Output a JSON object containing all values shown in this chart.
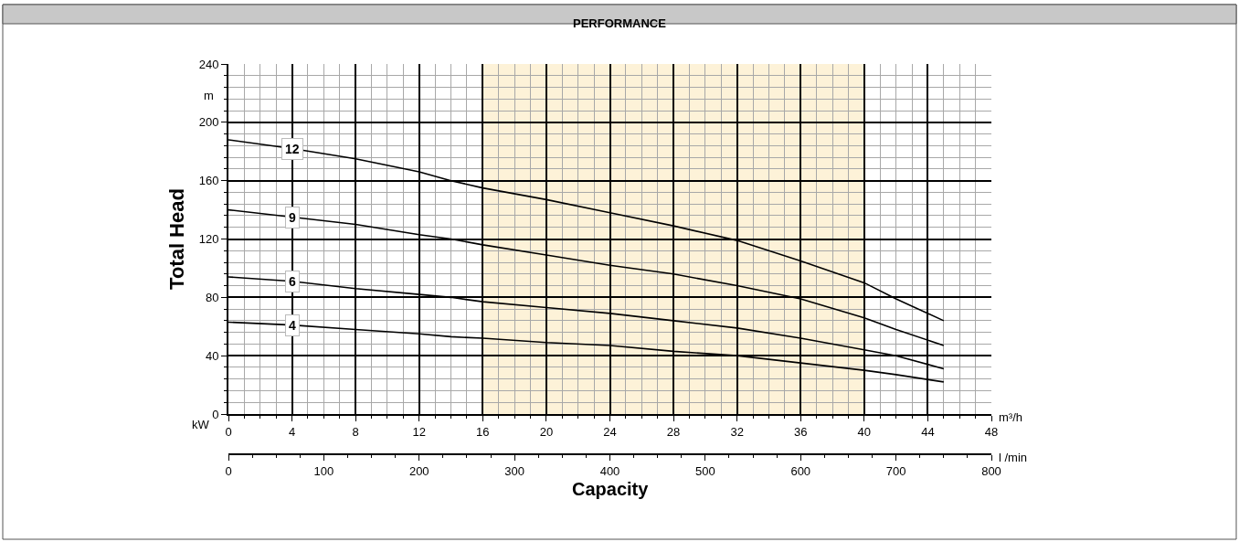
{
  "chart_data": {
    "type": "line",
    "title": "PERFORMANCE",
    "xlabel": "Capacity",
    "ylabel": "Total Head",
    "x2label": "l /min",
    "annotations": [
      "m",
      "m³/h",
      "kW"
    ],
    "x": [
      0,
      4,
      8,
      12,
      14,
      16,
      20,
      24,
      28,
      32,
      36,
      40,
      42,
      45
    ],
    "series": [
      {
        "name": "12",
        "color": "#000000",
        "values": [
          188,
          182,
          175,
          166,
          160,
          155,
          147,
          138,
          129,
          119,
          105,
          90,
          79,
          64
        ]
      },
      {
        "name": "9",
        "color": "#000000",
        "values": [
          140,
          135,
          130,
          123,
          120,
          116,
          109,
          102,
          96,
          88,
          79,
          66,
          58,
          47
        ]
      },
      {
        "name": "6",
        "color": "#000000",
        "values": [
          94,
          91,
          86,
          82,
          80,
          77,
          73,
          69,
          64,
          59,
          52,
          44,
          40,
          31
        ]
      },
      {
        "name": "4",
        "color": "#000000",
        "values": [
          63,
          61,
          58,
          55,
          53,
          52,
          49,
          47,
          43,
          40,
          35,
          30,
          27,
          22
        ]
      }
    ],
    "xlim": [
      0,
      48
    ],
    "xticks": [
      0,
      4,
      8,
      12,
      16,
      20,
      24,
      28,
      32,
      36,
      40,
      44,
      48
    ],
    "ylim": [
      0,
      240
    ],
    "yticks": [
      0,
      40,
      80,
      120,
      160,
      200,
      240
    ],
    "x2lim": [
      0,
      800
    ],
    "x2ticks": [
      0,
      100,
      200,
      300,
      400,
      500,
      600,
      700,
      800
    ],
    "bands": [
      {
        "axis": "x",
        "from": 16,
        "to": 40,
        "color": "#fdf2d8"
      }
    ],
    "grid": true,
    "legend": false,
    "marker": "none",
    "line_style": "solid"
  }
}
